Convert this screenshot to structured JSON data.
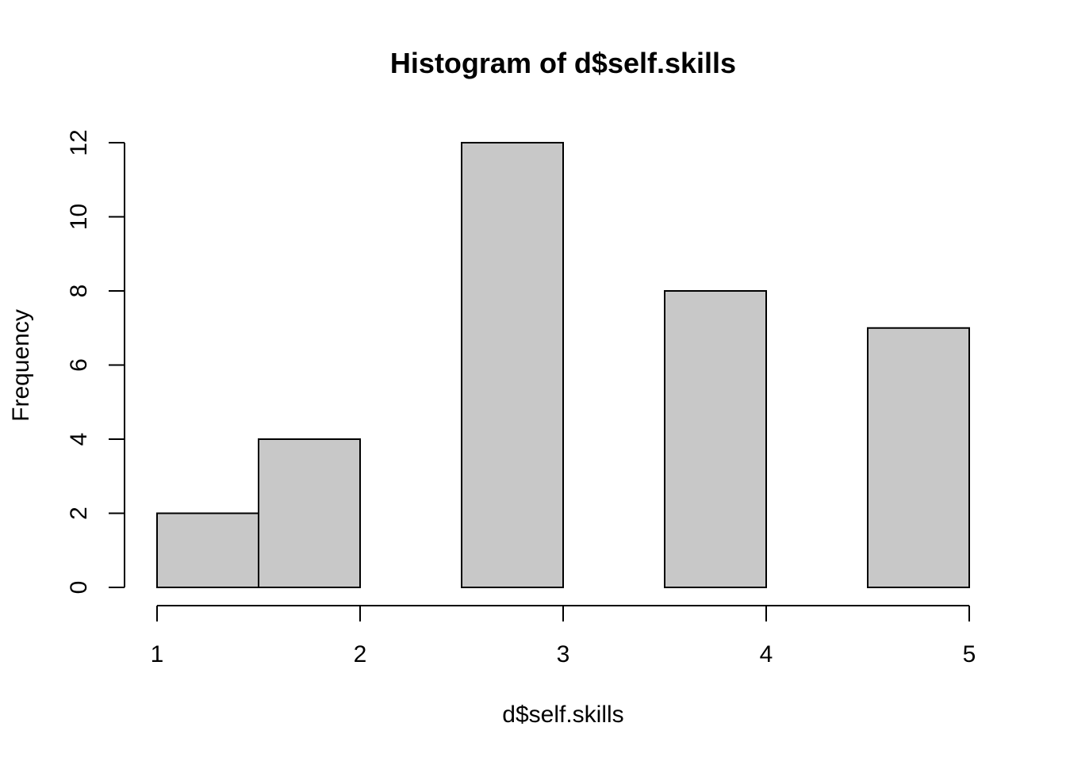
{
  "chart_data": {
    "type": "bar",
    "subtype": "histogram",
    "title": "Histogram of d$self.skills",
    "xlabel": "d$self.skills",
    "ylabel": "Frequency",
    "bins": [
      {
        "from": 1.0,
        "to": 1.5,
        "count": 2
      },
      {
        "from": 1.5,
        "to": 2.0,
        "count": 4
      },
      {
        "from": 2.0,
        "to": 2.5,
        "count": 0
      },
      {
        "from": 2.5,
        "to": 3.0,
        "count": 12
      },
      {
        "from": 3.0,
        "to": 3.5,
        "count": 0
      },
      {
        "from": 3.5,
        "to": 4.0,
        "count": 8
      },
      {
        "from": 4.0,
        "to": 4.5,
        "count": 0
      },
      {
        "from": 4.5,
        "to": 5.0,
        "count": 7
      }
    ],
    "xlim": [
      1,
      5
    ],
    "ylim": [
      0,
      12
    ],
    "xticks": [
      1,
      2,
      3,
      4,
      5
    ],
    "xtick_labels": [
      "1",
      "2",
      "3",
      "4",
      "5"
    ],
    "yticks": [
      0,
      2,
      4,
      6,
      8,
      10,
      12
    ],
    "ytick_labels": [
      "0",
      "2",
      "4",
      "6",
      "8",
      "10",
      "12"
    ],
    "bar_color": "#c8c8c8",
    "grid": false,
    "legend": "none"
  }
}
